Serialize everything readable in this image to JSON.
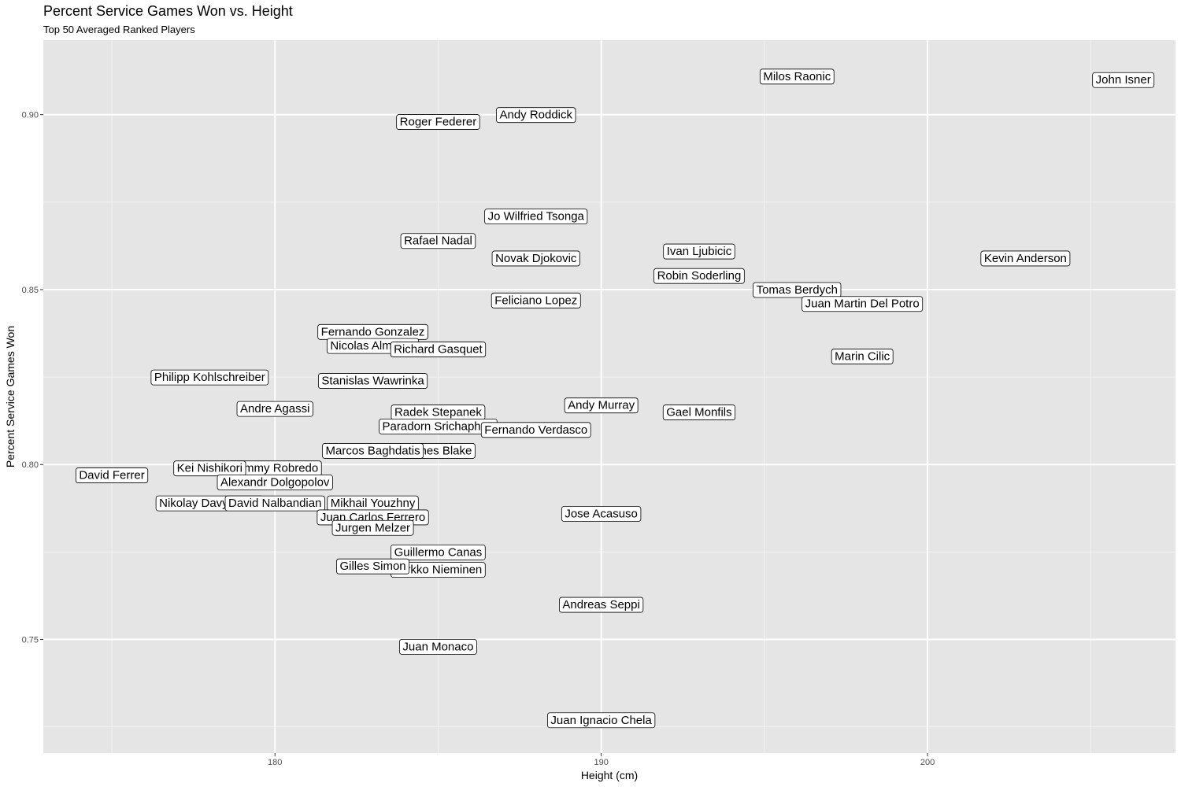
{
  "chart_data": {
    "type": "scatter",
    "title": "Percent Service Games Won vs. Height",
    "subtitle": "Top 50 Averaged Ranked Players",
    "xlabel": "Height (cm)",
    "ylabel": "Percent Service Games Won",
    "xlim": [
      172.9,
      207.6
    ],
    "ylim": [
      0.7175,
      0.9213
    ],
    "x_ticks": [
      180,
      190,
      200
    ],
    "x_tick_labels": [
      "180",
      "190",
      "200"
    ],
    "y_ticks": [
      0.75,
      0.8,
      0.85,
      0.9
    ],
    "y_tick_labels": [
      "0.75",
      "0.80",
      "0.85",
      "0.90"
    ],
    "grid": true,
    "background": "#e5e5e5",
    "point_style": "text-label",
    "points": [
      {
        "label": "Milos Raonic",
        "x": 196,
        "y": 0.911
      },
      {
        "label": "John Isner",
        "x": 206,
        "y": 0.91
      },
      {
        "label": "Andy Roddick",
        "x": 188,
        "y": 0.9
      },
      {
        "label": "Roger Federer",
        "x": 185,
        "y": 0.898
      },
      {
        "label": "Jo Wilfried Tsonga",
        "x": 188,
        "y": 0.871
      },
      {
        "label": "Rafael Nadal",
        "x": 185,
        "y": 0.864
      },
      {
        "label": "Ivan Ljubicic",
        "x": 193,
        "y": 0.861
      },
      {
        "label": "Novak Djokovic",
        "x": 188,
        "y": 0.859
      },
      {
        "label": "Kevin Anderson",
        "x": 203,
        "y": 0.859
      },
      {
        "label": "Robin Soderling",
        "x": 193,
        "y": 0.854
      },
      {
        "label": "Tomas Berdych",
        "x": 196,
        "y": 0.85
      },
      {
        "label": "Feliciano Lopez",
        "x": 188,
        "y": 0.847
      },
      {
        "label": "Juan Martin Del Potro",
        "x": 198,
        "y": 0.846
      },
      {
        "label": "Fernando Gonzalez",
        "x": 183,
        "y": 0.838
      },
      {
        "label": "Nicolas Almagro",
        "x": 183,
        "y": 0.834
      },
      {
        "label": "Richard Gasquet",
        "x": 185,
        "y": 0.833
      },
      {
        "label": "Marin Cilic",
        "x": 198,
        "y": 0.831
      },
      {
        "label": "Philipp Kohlschreiber",
        "x": 178,
        "y": 0.825
      },
      {
        "label": "Stanislas Wawrinka",
        "x": 183,
        "y": 0.824
      },
      {
        "label": "Andy Murray",
        "x": 190,
        "y": 0.817
      },
      {
        "label": "Andre Agassi",
        "x": 180,
        "y": 0.816
      },
      {
        "label": "Radek Stepanek",
        "x": 185,
        "y": 0.815
      },
      {
        "label": "Gael Monfils",
        "x": 193,
        "y": 0.815
      },
      {
        "label": "Paradorn Srichaphan",
        "x": 185,
        "y": 0.811
      },
      {
        "label": "Fernando Verdasco",
        "x": 188,
        "y": 0.81
      },
      {
        "label": "James Blake",
        "x": 185,
        "y": 0.804
      },
      {
        "label": "Marcos Baghdatis",
        "x": 183,
        "y": 0.804
      },
      {
        "label": "Tommy Robredo",
        "x": 180,
        "y": 0.799
      },
      {
        "label": "Kei Nishikori",
        "x": 178,
        "y": 0.799
      },
      {
        "label": "David Ferrer",
        "x": 175,
        "y": 0.797
      },
      {
        "label": "Alexandr Dolgopolov",
        "x": 180,
        "y": 0.795
      },
      {
        "label": "Nikolay Davydenko",
        "x": 178,
        "y": 0.789
      },
      {
        "label": "David Nalbandian",
        "x": 180,
        "y": 0.789
      },
      {
        "label": "Mikhail Youzhny",
        "x": 183,
        "y": 0.789
      },
      {
        "label": "Jose Acasuso",
        "x": 190,
        "y": 0.786
      },
      {
        "label": "Juan Carlos Ferrero",
        "x": 183,
        "y": 0.785
      },
      {
        "label": "Jurgen Melzer",
        "x": 183,
        "y": 0.782
      },
      {
        "label": "Guillermo Canas",
        "x": 185,
        "y": 0.775
      },
      {
        "label": "Jarkko Nieminen",
        "x": 185,
        "y": 0.77
      },
      {
        "label": "Gilles Simon",
        "x": 183,
        "y": 0.771
      },
      {
        "label": "Andreas Seppi",
        "x": 190,
        "y": 0.76
      },
      {
        "label": "Juan Monaco",
        "x": 185,
        "y": 0.748
      },
      {
        "label": "Juan Ignacio Chela",
        "x": 190,
        "y": 0.727
      }
    ]
  }
}
